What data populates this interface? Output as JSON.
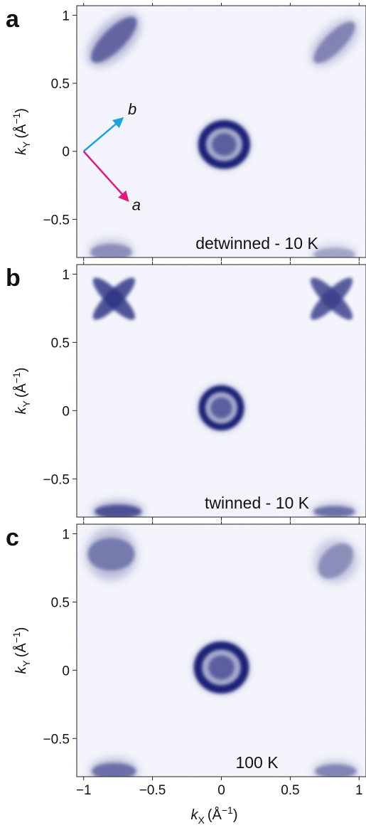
{
  "chart_data": [
    {
      "type": "heatmap",
      "panel_label": "a",
      "annotation": "detwinned - 10 K",
      "ylabel": {
        "k": "k",
        "sub": "Y",
        "unit": "(Å",
        "sup": "−1",
        "close": ")"
      },
      "xlim": [
        -1.05,
        1.05
      ],
      "ylim": [
        -0.78,
        1.07
      ],
      "yticks": [
        {
          "value": 1,
          "label": "1"
        },
        {
          "value": 0.5,
          "label": "0.5"
        },
        {
          "value": 0,
          "label": "0"
        },
        {
          "value": -0.5,
          "label": "−0.5"
        }
      ],
      "xticks": [
        -1,
        -0.5,
        0,
        0.5,
        1
      ],
      "colormap": {
        "low": "#ffffff",
        "high": "#1c2277"
      },
      "features": [
        {
          "name": "center-pocket",
          "x": 0.02,
          "y": 0.05,
          "rx": 0.16,
          "ry": 0.15,
          "intensity": 1.0,
          "shape": "ring"
        },
        {
          "name": "corner-top-left",
          "x": -0.78,
          "y": 0.82,
          "rx": 0.22,
          "ry": 0.08,
          "intensity": 0.75,
          "angle": -45
        },
        {
          "name": "corner-top-right",
          "x": 0.82,
          "y": 0.8,
          "rx": 0.2,
          "ry": 0.07,
          "intensity": 0.6,
          "angle": -45
        },
        {
          "name": "corner-bottom-left",
          "x": -0.8,
          "y": -0.74,
          "rx": 0.15,
          "ry": 0.06,
          "intensity": 0.55,
          "angle": 0
        },
        {
          "name": "corner-bottom-right",
          "x": 0.82,
          "y": -0.76,
          "rx": 0.15,
          "ry": 0.05,
          "intensity": 0.45,
          "angle": 0
        }
      ],
      "vectors": [
        {
          "label": "b",
          "color": "#1aa3e0",
          "from": [
            -1.0,
            0.0
          ],
          "to": [
            -0.72,
            0.24
          ]
        },
        {
          "label": "a",
          "color": "#e0187f",
          "from": [
            -1.0,
            0.0
          ],
          "to": [
            -0.68,
            -0.36
          ]
        }
      ]
    },
    {
      "type": "heatmap",
      "panel_label": "b",
      "annotation": "twinned - 10 K",
      "ylabel": {
        "k": "k",
        "sub": "Y",
        "unit": "(Å",
        "sup": "−1",
        "close": ")"
      },
      "xlim": [
        -1.05,
        1.05
      ],
      "ylim": [
        -0.78,
        1.07
      ],
      "yticks": [
        {
          "value": 1,
          "label": "1"
        },
        {
          "value": 0.5,
          "label": "0.5"
        },
        {
          "value": 0,
          "label": "0"
        },
        {
          "value": -0.5,
          "label": "−0.5"
        }
      ],
      "xticks": [
        -1,
        -0.5,
        0,
        0.5,
        1
      ],
      "colormap": {
        "low": "#ffffff",
        "high": "#1c2277"
      },
      "features": [
        {
          "name": "center-pocket",
          "x": 0.0,
          "y": 0.02,
          "rx": 0.14,
          "ry": 0.14,
          "intensity": 1.0,
          "shape": "ring"
        },
        {
          "name": "corner-top-left",
          "x": -0.78,
          "y": 0.82,
          "rx": 0.16,
          "ry": 0.05,
          "intensity": 0.9,
          "shape": "cross"
        },
        {
          "name": "corner-top-right",
          "x": 0.8,
          "y": 0.82,
          "rx": 0.16,
          "ry": 0.05,
          "intensity": 0.85,
          "shape": "cross"
        },
        {
          "name": "corner-bottom-left",
          "x": -0.75,
          "y": -0.74,
          "rx": 0.17,
          "ry": 0.05,
          "intensity": 0.85,
          "angle": 0
        },
        {
          "name": "corner-bottom-right",
          "x": 0.82,
          "y": -0.74,
          "rx": 0.15,
          "ry": 0.04,
          "intensity": 0.7,
          "angle": 0
        }
      ]
    },
    {
      "type": "heatmap",
      "panel_label": "c",
      "annotation": "100 K",
      "xlabel": {
        "k": "k",
        "sub": "X",
        "unit": "(Å",
        "sup": "−1",
        "close": ")"
      },
      "ylabel": {
        "k": "k",
        "sub": "Y",
        "unit": "(Å",
        "sup": "−1",
        "close": ")"
      },
      "xlim": [
        -1.05,
        1.05
      ],
      "ylim": [
        -0.78,
        1.07
      ],
      "yticks": [
        {
          "value": 1,
          "label": "1"
        },
        {
          "value": 0.5,
          "label": "0.5"
        },
        {
          "value": 0,
          "label": "0"
        },
        {
          "value": -0.5,
          "label": "−0.5"
        }
      ],
      "xticks": [
        {
          "value": -1,
          "label": "−1"
        },
        {
          "value": -0.5,
          "label": "−0.5"
        },
        {
          "value": 0,
          "label": "0"
        },
        {
          "value": 0.5,
          "label": "0.5"
        },
        {
          "value": 1,
          "label": "1"
        }
      ],
      "colormap": {
        "low": "#ffffff",
        "high": "#1c2277"
      },
      "features": [
        {
          "name": "center-pocket",
          "x": 0.0,
          "y": 0.02,
          "rx": 0.17,
          "ry": 0.16,
          "intensity": 1.0,
          "shape": "ring"
        },
        {
          "name": "corner-top-left",
          "x": -0.8,
          "y": 0.85,
          "rx": 0.17,
          "ry": 0.12,
          "intensity": 0.65,
          "angle": 0
        },
        {
          "name": "corner-top-right",
          "x": 0.83,
          "y": 0.8,
          "rx": 0.15,
          "ry": 0.1,
          "intensity": 0.55,
          "angle": -45
        },
        {
          "name": "corner-bottom-left",
          "x": -0.78,
          "y": -0.74,
          "rx": 0.16,
          "ry": 0.06,
          "intensity": 0.7,
          "angle": 0
        },
        {
          "name": "corner-bottom-right",
          "x": 0.83,
          "y": -0.74,
          "rx": 0.15,
          "ry": 0.05,
          "intensity": 0.6,
          "angle": 0
        }
      ]
    }
  ]
}
